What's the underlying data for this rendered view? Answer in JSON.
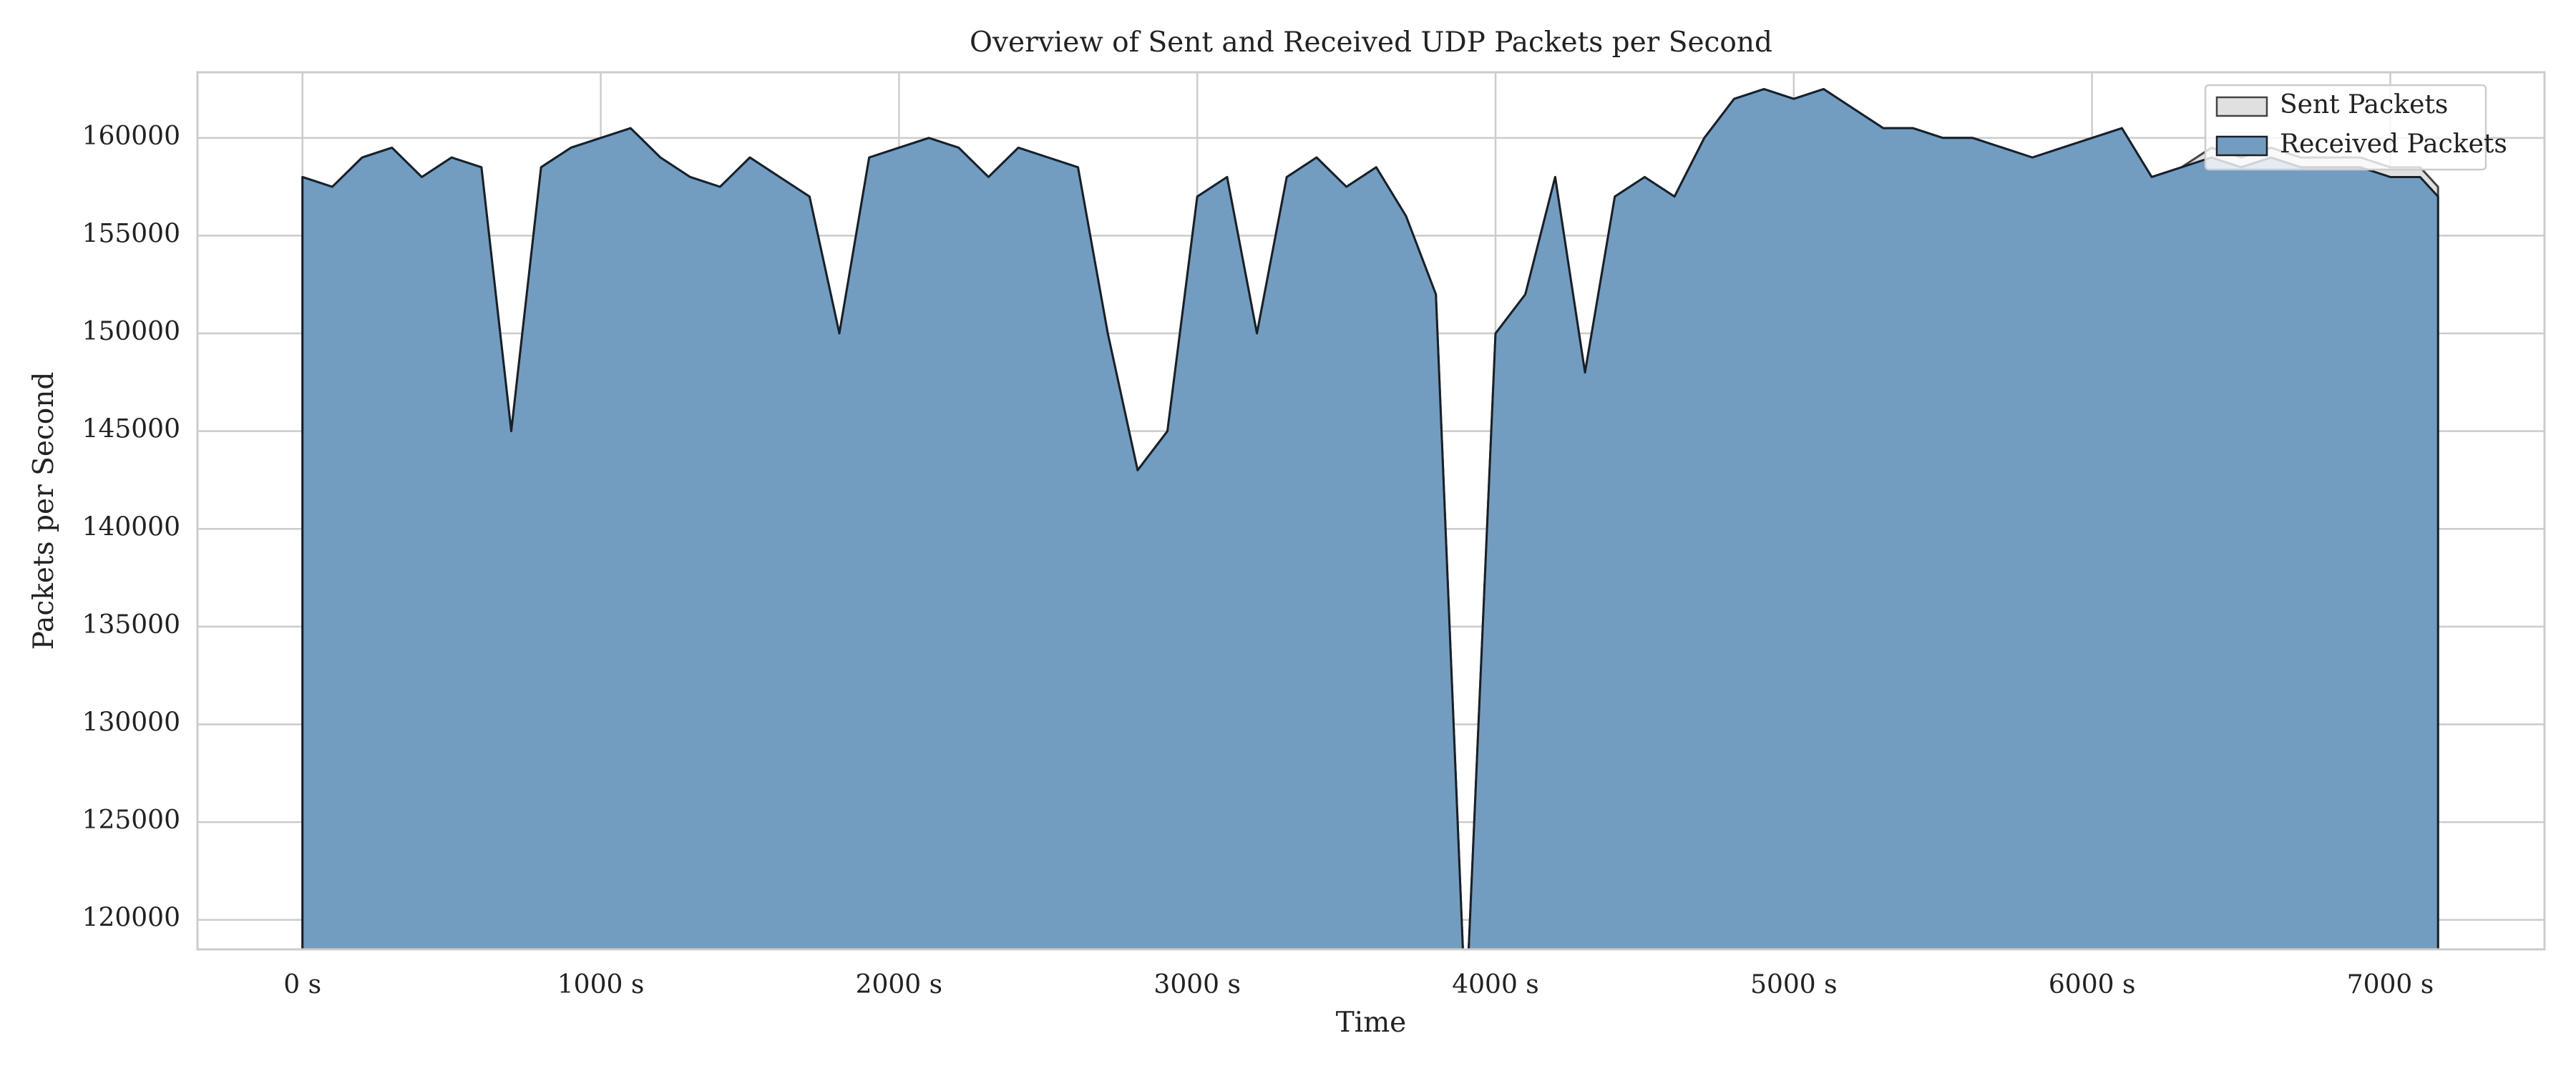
{
  "chart_data": {
    "type": "area",
    "title": "Overview of Sent and Received UDP Packets per Second",
    "xlabel": "Time",
    "ylabel": "Packets per Second",
    "x": [
      0,
      100,
      200,
      300,
      400,
      500,
      600,
      700,
      800,
      900,
      1000,
      1100,
      1200,
      1300,
      1400,
      1500,
      1600,
      1700,
      1800,
      1900,
      2000,
      2100,
      2200,
      2300,
      2400,
      2500,
      2600,
      2700,
      2800,
      2900,
      3000,
      3100,
      3200,
      3300,
      3400,
      3500,
      3600,
      3700,
      3800,
      3900,
      4000,
      4100,
      4200,
      4300,
      4400,
      4500,
      4600,
      4700,
      4800,
      4900,
      5000,
      5100,
      5200,
      5300,
      5400,
      5500,
      5600,
      5700,
      5800,
      5900,
      6000,
      6100,
      6200,
      6300,
      6400,
      6500,
      6600,
      6700,
      6800,
      6900,
      7000,
      7100,
      7160
    ],
    "series": [
      {
        "name": "Sent Packets",
        "color": "#e0e0e0",
        "edge": "#444444",
        "values": [
          158000,
          157500,
          159000,
          159500,
          158000,
          159000,
          158500,
          145000,
          158500,
          159500,
          160000,
          160500,
          159000,
          158000,
          157500,
          159000,
          158000,
          157000,
          150000,
          159000,
          159500,
          160000,
          159500,
          158000,
          159500,
          159000,
          158500,
          150000,
          143000,
          145000,
          157000,
          158000,
          150000,
          158000,
          159000,
          157500,
          158500,
          156000,
          152000,
          115000,
          150000,
          152000,
          158000,
          148000,
          157000,
          158000,
          157000,
          160000,
          162000,
          162500,
          162000,
          162500,
          161500,
          160500,
          160500,
          160000,
          160000,
          159500,
          159000,
          159500,
          160000,
          160500,
          158000,
          158500,
          159500,
          159000,
          159500,
          159000,
          159000,
          159000,
          158500,
          158500,
          157500
        ]
      },
      {
        "name": "Received Packets",
        "color": "#729dc1",
        "edge": "#1b1f24",
        "values": [
          158000,
          157500,
          159000,
          159500,
          158000,
          159000,
          158500,
          145000,
          158500,
          159500,
          160000,
          160500,
          159000,
          158000,
          157500,
          159000,
          158000,
          157000,
          150000,
          159000,
          159500,
          160000,
          159500,
          158000,
          159500,
          159000,
          158500,
          150000,
          143000,
          145000,
          157000,
          158000,
          150000,
          158000,
          159000,
          157500,
          158500,
          156000,
          152000,
          115000,
          150000,
          152000,
          158000,
          148000,
          157000,
          158000,
          157000,
          160000,
          162000,
          162500,
          162000,
          162500,
          161500,
          160500,
          160500,
          160000,
          160000,
          159500,
          159000,
          159500,
          160000,
          160500,
          158000,
          158500,
          159000,
          158500,
          159000,
          158500,
          158500,
          158500,
          158000,
          158000,
          157000
        ]
      }
    ],
    "xlim": [
      -352,
      7517
    ],
    "ylim": [
      118490,
      163360
    ],
    "xticks": [
      {
        "value": 0,
        "label": "0 s"
      },
      {
        "value": 1000,
        "label": "1000 s"
      },
      {
        "value": 2000,
        "label": "2000 s"
      },
      {
        "value": 3000,
        "label": "3000 s"
      },
      {
        "value": 4000,
        "label": "4000 s"
      },
      {
        "value": 5000,
        "label": "5000 s"
      },
      {
        "value": 6000,
        "label": "6000 s"
      },
      {
        "value": 7000,
        "label": "7000 s"
      }
    ],
    "yticks": [
      120000,
      125000,
      130000,
      135000,
      140000,
      145000,
      150000,
      155000,
      160000
    ],
    "grid": true,
    "legend": "upper right"
  }
}
